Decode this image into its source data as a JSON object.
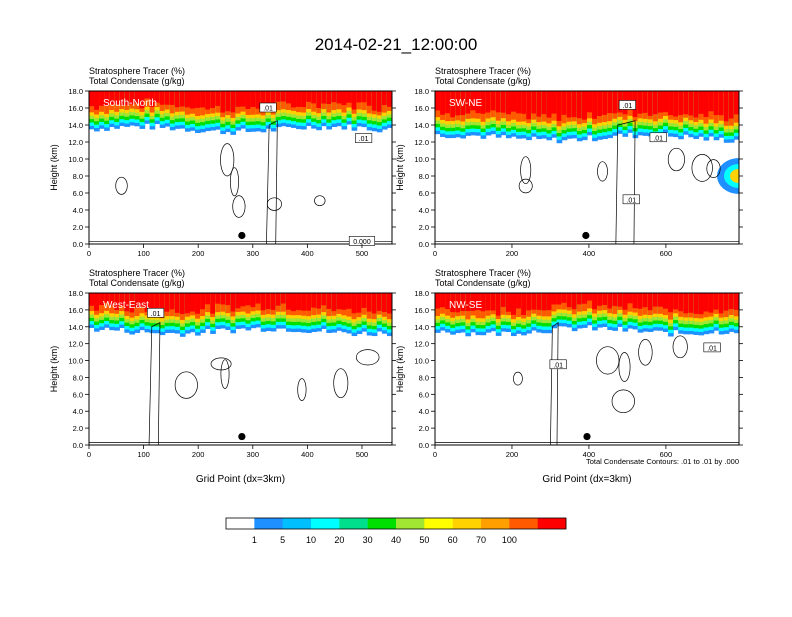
{
  "title": "2014-02-21_12:00:00",
  "colorbar": {
    "colors": [
      "#ffffff",
      "#1e90ff",
      "#00bfff",
      "#00ffff",
      "#00e08c",
      "#00e000",
      "#a0e632",
      "#ffff00",
      "#ffd200",
      "#ffa000",
      "#ff5a00",
      "#ff0000"
    ],
    "labels": [
      "1",
      "5",
      "10",
      "20",
      "30",
      "40",
      "50",
      "60",
      "70",
      "100"
    ]
  },
  "contour_note": "Total Condensate Contours: .01 to .01 by .000",
  "chart_data": [
    {
      "type": "heatmap",
      "label": "South-North",
      "header": [
        "Stratosphere Tracer   (%)",
        "Total Condensate   (g/kg)"
      ],
      "ylabel": "Height (km)",
      "xlabel": "",
      "ylim": [
        0,
        18
      ],
      "xlim": [
        0,
        555
      ],
      "xticks": [
        "0",
        "100",
        "200",
        "300",
        "400",
        "500"
      ],
      "yticks": [
        "0.0",
        "2.0",
        "4.0",
        "6.0",
        "8.0",
        "10.0",
        "12.0",
        "14.0",
        "16.0",
        "18.0"
      ],
      "tracer_band_km": [
        13.5,
        18
      ],
      "contour_labels": [
        {
          "x": 328,
          "y": 16.0,
          "text": ".01"
        },
        {
          "x": 503,
          "y": 12.4,
          "text": ".01"
        },
        {
          "x": 500,
          "y": 0.3,
          "text": "0.000"
        }
      ],
      "marker": {
        "x": 280,
        "y": 1.0
      }
    },
    {
      "type": "heatmap",
      "label": "SW-NE",
      "header": [
        "Stratosphere Tracer   (%)",
        "Total Condensate   (g/kg)"
      ],
      "ylabel": "Height (km)",
      "xlabel": "",
      "ylim": [
        0,
        18
      ],
      "xlim": [
        0,
        790
      ],
      "xticks": [
        "0",
        "200",
        "400",
        "600"
      ],
      "yticks": [
        "0.0",
        "2.0",
        "4.0",
        "6.0",
        "8.0",
        "10.0",
        "12.0",
        "14.0",
        "16.0",
        "18.0"
      ],
      "tracer_band_km": [
        12.5,
        18
      ],
      "contour_labels": [
        {
          "x": 500,
          "y": 16.3,
          "text": ".01"
        },
        {
          "x": 580,
          "y": 12.5,
          "text": ".01"
        },
        {
          "x": 510,
          "y": 5.2,
          "text": ".01"
        }
      ],
      "marker": {
        "x": 392,
        "y": 1.0
      }
    },
    {
      "type": "heatmap",
      "label": "West-East",
      "header": [
        "Stratosphere Tracer   (%)",
        "Total Condensate   (g/kg)"
      ],
      "ylabel": "Height (km)",
      "xlabel": "Grid Point (dx=3km)",
      "ylim": [
        0,
        18
      ],
      "xlim": [
        0,
        555
      ],
      "xticks": [
        "0",
        "100",
        "200",
        "300",
        "400",
        "500"
      ],
      "yticks": [
        "0.0",
        "2.0",
        "4.0",
        "6.0",
        "8.0",
        "10.0",
        "12.0",
        "14.0",
        "16.0",
        "18.0"
      ],
      "tracer_band_km": [
        13.5,
        18
      ],
      "contour_labels": [
        {
          "x": 122,
          "y": 15.6,
          "text": ".01"
        }
      ],
      "marker": {
        "x": 280,
        "y": 1.0
      }
    },
    {
      "type": "heatmap",
      "label": "NW-SE",
      "header": [
        "Stratosphere Tracer   (%)",
        "Total Condensate   (g/kg)"
      ],
      "ylabel": "Height (km)",
      "xlabel": "Grid Point (dx=3km)",
      "ylim": [
        0,
        18
      ],
      "xlim": [
        0,
        790
      ],
      "xticks": [
        "0",
        "200",
        "400",
        "600"
      ],
      "yticks": [
        "0.0",
        "2.0",
        "4.0",
        "6.0",
        "8.0",
        "10.0",
        "12.0",
        "14.0",
        "16.0",
        "18.0"
      ],
      "tracer_band_km": [
        13.5,
        18
      ],
      "contour_labels": [
        {
          "x": 320,
          "y": 9.5,
          "text": ".01"
        },
        {
          "x": 720,
          "y": 11.5,
          "text": ".01"
        }
      ],
      "marker": {
        "x": 395,
        "y": 1.0
      }
    }
  ]
}
